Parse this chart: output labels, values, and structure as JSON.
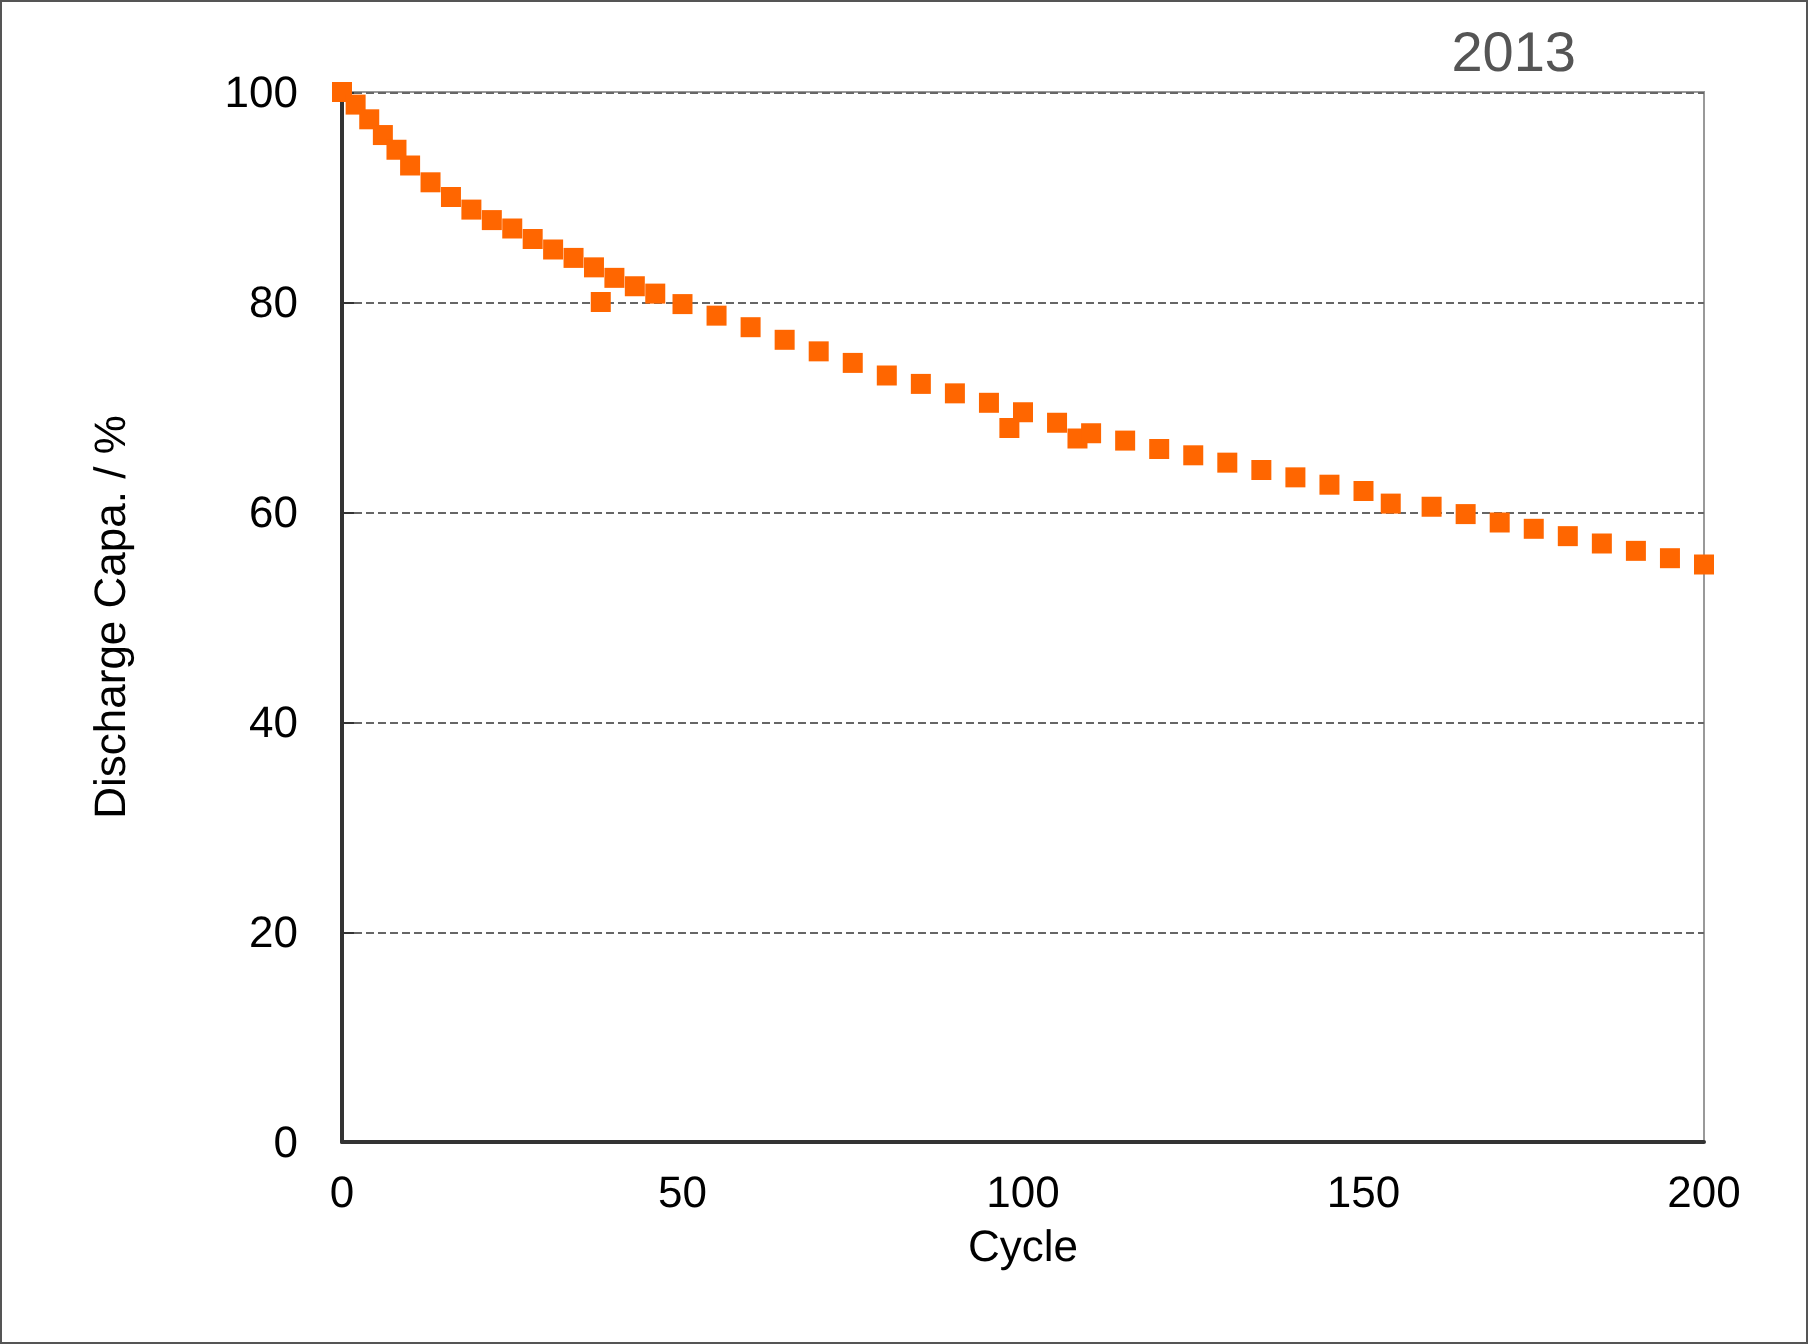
{
  "chart_data": {
    "type": "scatter",
    "title": "2013",
    "xlabel": "Cycle",
    "ylabel": "Discharge Capa. / %",
    "x": [
      0,
      2,
      4,
      6,
      8,
      10,
      13,
      16,
      19,
      22,
      25,
      28,
      31,
      34,
      37,
      38,
      40,
      43,
      46,
      50,
      55,
      60,
      65,
      70,
      75,
      80,
      85,
      90,
      95,
      98,
      100,
      105,
      108,
      110,
      115,
      120,
      125,
      130,
      135,
      140,
      145,
      150,
      154,
      160,
      165,
      170,
      175,
      180,
      185,
      190,
      195,
      200
    ],
    "series": [
      {
        "color": "#ff6600",
        "values": [
          100,
          98.8,
          97.4,
          95.9,
          94.5,
          93,
          91.4,
          90,
          88.8,
          87.8,
          87,
          86,
          85,
          84.2,
          83.3,
          80,
          82.3,
          81.5,
          80.8,
          79.8,
          78.7,
          77.6,
          76.4,
          75.3,
          74.2,
          73,
          72.2,
          71.3,
          70.4,
          68,
          69.5,
          68.5,
          67,
          67.5,
          66.8,
          66,
          65.4,
          64.7,
          64,
          63.3,
          62.6,
          62,
          60.8,
          60.5,
          59.8,
          59,
          58.4,
          57.7,
          57,
          56.3,
          55.6,
          55
        ]
      }
    ],
    "xlim": [
      0,
      200
    ],
    "xticks": [
      0,
      50,
      100,
      150,
      200
    ],
    "ylim": [
      0,
      100
    ],
    "yticks": [
      0,
      20,
      40,
      60,
      80,
      100
    ],
    "grid": "y",
    "marker": "square"
  }
}
